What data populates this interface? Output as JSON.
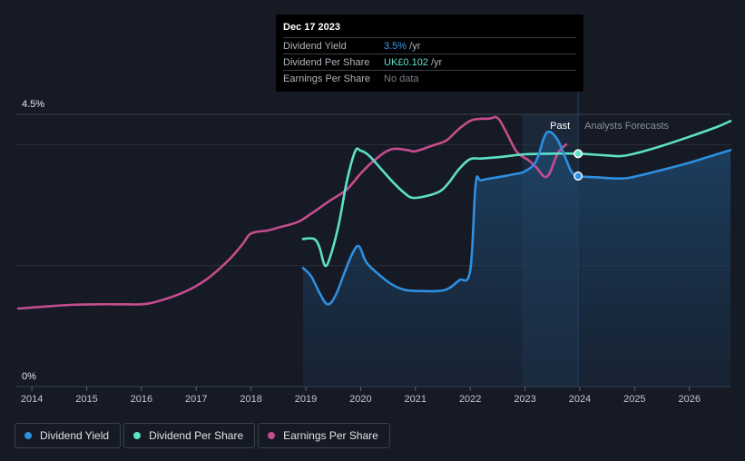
{
  "colors": {
    "background": "#151a24",
    "dividend_yield": "#2e8fe0",
    "dividend_per_share": "#5ee0c9",
    "earnings_per_share": "#c54d8e",
    "analysts_text": "#8a919b"
  },
  "tooltip": {
    "date": "Dec 17 2023",
    "rows": [
      {
        "label": "Dividend Yield",
        "value": "3.5%",
        "unit": " /yr",
        "color": "#3d9cf0"
      },
      {
        "label": "Dividend Per Share",
        "value": "UK£0.102",
        "unit": " /yr",
        "color": "#5ee0c9"
      },
      {
        "label": "Earnings Per Share",
        "value": "No data",
        "unit": "",
        "color": "#7b818a"
      }
    ]
  },
  "legend": [
    {
      "label": "Dividend Yield",
      "color": "#2e8fe0"
    },
    {
      "label": "Dividend Per Share",
      "color": "#5ee0c9"
    },
    {
      "label": "Earnings Per Share",
      "color": "#c54d8e"
    }
  ],
  "chart_data": {
    "type": "line",
    "title": "",
    "xlabel": "",
    "ylabel": "",
    "xlim": [
      2013.7,
      2026.75
    ],
    "ylim": [
      0,
      4.5
    ],
    "y_tick_labels": [
      "0%",
      "4.5%"
    ],
    "x_ticks": [
      2014,
      2015,
      2016,
      2017,
      2018,
      2019,
      2020,
      2021,
      2022,
      2023,
      2024,
      2025,
      2026
    ],
    "grid": true,
    "past_label": "Past",
    "forecast_label": "Analysts Forecasts",
    "forecast_start": 2023.97,
    "past_shade_start": 2022.95,
    "series": [
      {
        "name": "Dividend Yield",
        "key": "dividend_yield",
        "color": "#2e8fe0",
        "area": true,
        "x": [
          2018.95,
          2019.1,
          2019.25,
          2019.4,
          2019.55,
          2019.7,
          2019.85,
          2019.97,
          2020.1,
          2020.3,
          2020.55,
          2020.8,
          2021.1,
          2021.4,
          2021.6,
          2021.8,
          2022.0,
          2022.1,
          2022.2,
          2022.5,
          2022.8,
          2023.0,
          2023.2,
          2023.35,
          2023.45,
          2023.6,
          2023.75,
          2023.85,
          2023.97,
          2024.3,
          2024.75,
          2025.0,
          2025.5,
          2026.0,
          2026.5,
          2026.75
        ],
        "values": [
          1.96,
          1.82,
          1.55,
          1.36,
          1.52,
          1.87,
          2.2,
          2.32,
          2.06,
          1.88,
          1.7,
          1.6,
          1.58,
          1.58,
          1.62,
          1.76,
          1.92,
          3.34,
          3.41,
          3.46,
          3.51,
          3.56,
          3.72,
          4.12,
          4.21,
          4.07,
          3.75,
          3.55,
          3.48,
          3.46,
          3.44,
          3.47,
          3.58,
          3.7,
          3.84,
          3.91
        ]
      },
      {
        "name": "Dividend Per Share",
        "key": "dividend_per_share",
        "color": "#5ee0c9",
        "area": false,
        "x": [
          2018.95,
          2019.15,
          2019.25,
          2019.35,
          2019.45,
          2019.6,
          2019.75,
          2019.9,
          2020.0,
          2020.15,
          2020.4,
          2020.6,
          2020.8,
          2020.95,
          2021.2,
          2021.45,
          2021.6,
          2021.8,
          2022.0,
          2022.2,
          2022.6,
          2023.0,
          2023.5,
          2023.97,
          2024.5,
          2024.75,
          2025.0,
          2025.5,
          2026.0,
          2026.5,
          2026.75
        ],
        "values": [
          2.44,
          2.44,
          2.3,
          2.0,
          2.16,
          2.68,
          3.4,
          3.89,
          3.9,
          3.82,
          3.57,
          3.37,
          3.2,
          3.12,
          3.15,
          3.23,
          3.36,
          3.6,
          3.76,
          3.77,
          3.8,
          3.84,
          3.85,
          3.85,
          3.82,
          3.81,
          3.85,
          3.98,
          4.13,
          4.29,
          4.39
        ]
      },
      {
        "name": "Earnings Per Share",
        "key": "earnings_per_share",
        "color": "#c54d8e",
        "area": false,
        "x": [
          2013.75,
          2014.2,
          2014.7,
          2015.2,
          2015.7,
          2016.0,
          2016.3,
          2016.8,
          2017.2,
          2017.6,
          2017.85,
          2018.0,
          2018.3,
          2018.5,
          2018.85,
          2019.1,
          2019.45,
          2019.75,
          2020.0,
          2020.25,
          2020.55,
          2020.85,
          2021.0,
          2021.3,
          2021.55,
          2021.7,
          2021.85,
          2022.05,
          2022.35,
          2022.5,
          2022.65,
          2022.85,
          2023.05,
          2023.2,
          2023.4,
          2023.6,
          2023.75
        ],
        "values": [
          1.29,
          1.32,
          1.35,
          1.36,
          1.36,
          1.36,
          1.41,
          1.57,
          1.78,
          2.1,
          2.36,
          2.53,
          2.58,
          2.63,
          2.72,
          2.86,
          3.08,
          3.26,
          3.52,
          3.74,
          3.92,
          3.91,
          3.89,
          3.98,
          4.06,
          4.18,
          4.3,
          4.41,
          4.43,
          4.44,
          4.22,
          3.88,
          3.75,
          3.63,
          3.47,
          3.86,
          4.0
        ]
      }
    ],
    "markers": [
      {
        "series": "dividend_per_share",
        "x": 2023.97,
        "y": 3.85
      },
      {
        "series": "dividend_yield",
        "x": 2023.97,
        "y": 3.48
      }
    ]
  }
}
